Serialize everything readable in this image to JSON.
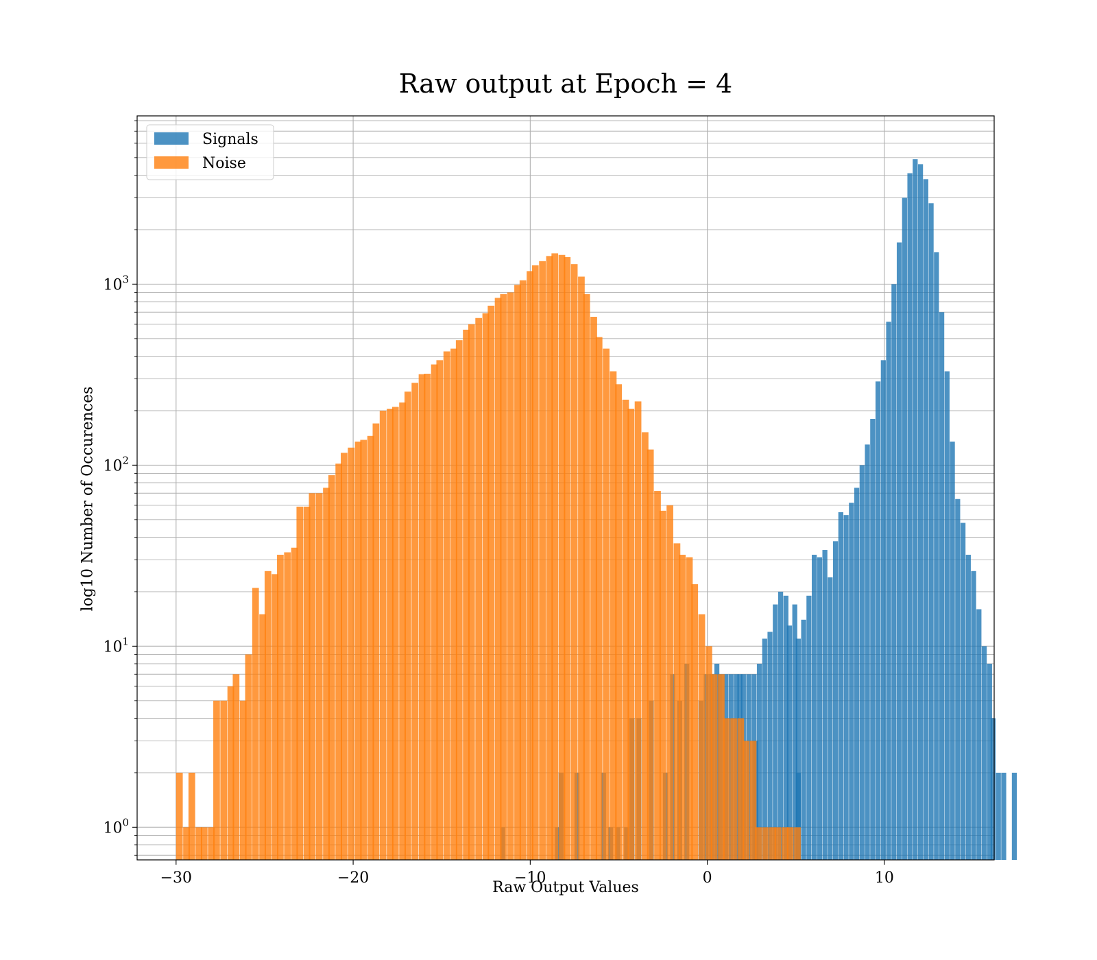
{
  "chart_data": {
    "type": "bar",
    "title": "Raw output at Epoch = 4",
    "xlabel": "Raw Output Values",
    "ylabel": "log10 Number of Occurences",
    "x_range": [
      -32.2,
      16.2
    ],
    "y_range": [
      0.66,
      8500
    ],
    "y_scale": "log",
    "x_ticks": [
      {
        "value": -30,
        "label": "−30"
      },
      {
        "value": -20,
        "label": "−20"
      },
      {
        "value": -10,
        "label": "−10"
      },
      {
        "value": 0,
        "label": "0"
      },
      {
        "value": 10,
        "label": "10"
      }
    ],
    "y_ticks": [
      {
        "value": 1,
        "base": "10",
        "exp": "0"
      },
      {
        "value": 10,
        "base": "10",
        "exp": "1"
      },
      {
        "value": 100,
        "base": "10",
        "exp": "2"
      },
      {
        "value": 1000,
        "base": "10",
        "exp": "3"
      }
    ],
    "grid": true,
    "legend_position": "top-left",
    "series": [
      {
        "name": "Signals",
        "color": "#1f77b4",
        "opacity": 0.8,
        "bin_width": 0.27,
        "bins": [
          [
            -11.7,
            1
          ],
          [
            -8.6,
            1
          ],
          [
            -8.4,
            2
          ],
          [
            -7.5,
            2
          ],
          [
            -6.0,
            2
          ],
          [
            -5.6,
            1
          ],
          [
            -5.2,
            1
          ],
          [
            -4.7,
            1
          ],
          [
            -4.4,
            4
          ],
          [
            -4.0,
            4
          ],
          [
            -3.3,
            5
          ],
          [
            -2.5,
            2
          ],
          [
            -2.1,
            7
          ],
          [
            -1.7,
            5
          ],
          [
            -1.3,
            8
          ],
          [
            -0.5,
            5
          ],
          [
            -0.2,
            7
          ],
          [
            0.1,
            7
          ],
          [
            0.4,
            8
          ],
          [
            0.6,
            7
          ],
          [
            0.9,
            7
          ],
          [
            1.2,
            7
          ],
          [
            1.5,
            7
          ],
          [
            1.7,
            7
          ],
          [
            1.9,
            7
          ],
          [
            2.2,
            7
          ],
          [
            2.5,
            7
          ],
          [
            2.8,
            8
          ],
          [
            3.1,
            11
          ],
          [
            3.4,
            12
          ],
          [
            3.7,
            17
          ],
          [
            4.0,
            20
          ],
          [
            4.3,
            19
          ],
          [
            4.5,
            13
          ],
          [
            4.8,
            17
          ],
          [
            5.0,
            11
          ],
          [
            5.3,
            14
          ],
          [
            5.6,
            19
          ],
          [
            5.9,
            32
          ],
          [
            6.2,
            31
          ],
          [
            6.5,
            34
          ],
          [
            6.8,
            24
          ],
          [
            7.1,
            38
          ],
          [
            7.4,
            55
          ],
          [
            7.7,
            53
          ],
          [
            8.0,
            62
          ],
          [
            8.3,
            75
          ],
          [
            8.6,
            100
          ],
          [
            8.9,
            130
          ],
          [
            9.2,
            180
          ],
          [
            9.5,
            290
          ],
          [
            9.8,
            380
          ],
          [
            10.1,
            620
          ],
          [
            10.4,
            1000
          ],
          [
            10.7,
            1700
          ],
          [
            11.0,
            3000
          ],
          [
            11.3,
            4100
          ],
          [
            11.6,
            4900
          ],
          [
            11.9,
            4600
          ],
          [
            12.2,
            3800
          ],
          [
            12.5,
            2800
          ],
          [
            12.8,
            1500
          ],
          [
            13.1,
            700
          ],
          [
            13.4,
            330
          ],
          [
            13.7,
            135
          ],
          [
            14.0,
            65
          ],
          [
            14.3,
            48
          ],
          [
            14.6,
            32
          ],
          [
            14.9,
            26
          ],
          [
            15.2,
            16
          ],
          [
            15.5,
            10
          ],
          [
            15.8,
            8
          ],
          [
            16.0,
            4
          ],
          [
            16.3,
            2
          ],
          [
            16.6,
            2
          ],
          [
            17.2,
            2
          ],
          [
            5.0,
            2
          ],
          [
            2.6,
            3
          ]
        ]
      },
      {
        "name": "Noise",
        "color": "#ff7f0e",
        "opacity": 0.8,
        "bin_width": 0.365,
        "bins": [
          [
            -30.0,
            2
          ],
          [
            -29.6,
            1
          ],
          [
            -29.3,
            2
          ],
          [
            -28.9,
            1
          ],
          [
            -28.6,
            1
          ],
          [
            -28.2,
            1
          ],
          [
            -27.9,
            5
          ],
          [
            -27.5,
            5
          ],
          [
            -27.1,
            6
          ],
          [
            -26.8,
            7
          ],
          [
            -26.4,
            5
          ],
          [
            -26.1,
            9
          ],
          [
            -25.7,
            21
          ],
          [
            -25.3,
            15
          ],
          [
            -25.0,
            26
          ],
          [
            -24.6,
            25
          ],
          [
            -24.3,
            32
          ],
          [
            -23.9,
            33
          ],
          [
            -23.5,
            35
          ],
          [
            -23.2,
            59
          ],
          [
            -22.8,
            59
          ],
          [
            -22.5,
            70
          ],
          [
            -22.1,
            70
          ],
          [
            -21.7,
            75
          ],
          [
            -21.4,
            88
          ],
          [
            -21.0,
            102
          ],
          [
            -20.7,
            117
          ],
          [
            -20.3,
            125
          ],
          [
            -19.9,
            135
          ],
          [
            -19.6,
            138
          ],
          [
            -19.2,
            145
          ],
          [
            -18.9,
            170
          ],
          [
            -18.5,
            200
          ],
          [
            -18.1,
            205
          ],
          [
            -17.8,
            210
          ],
          [
            -17.4,
            222
          ],
          [
            -17.1,
            255
          ],
          [
            -16.7,
            285
          ],
          [
            -16.3,
            318
          ],
          [
            -16.0,
            320
          ],
          [
            -15.6,
            360
          ],
          [
            -15.3,
            380
          ],
          [
            -14.9,
            425
          ],
          [
            -14.5,
            440
          ],
          [
            -14.2,
            490
          ],
          [
            -13.8,
            560
          ],
          [
            -13.5,
            600
          ],
          [
            -13.1,
            650
          ],
          [
            -12.7,
            690
          ],
          [
            -12.4,
            760
          ],
          [
            -12.0,
            840
          ],
          [
            -11.7,
            880
          ],
          [
            -11.3,
            900
          ],
          [
            -10.9,
            990
          ],
          [
            -10.6,
            1050
          ],
          [
            -10.2,
            1180
          ],
          [
            -9.9,
            1270
          ],
          [
            -9.5,
            1340
          ],
          [
            -9.1,
            1430
          ],
          [
            -8.8,
            1480
          ],
          [
            -8.4,
            1450
          ],
          [
            -8.1,
            1410
          ],
          [
            -7.7,
            1290
          ],
          [
            -7.3,
            1100
          ],
          [
            -7.0,
            880
          ],
          [
            -6.6,
            660
          ],
          [
            -6.3,
            510
          ],
          [
            -5.9,
            440
          ],
          [
            -5.5,
            330
          ],
          [
            -5.2,
            280
          ],
          [
            -4.8,
            230
          ],
          [
            -4.5,
            205
          ],
          [
            -4.1,
            225
          ],
          [
            -3.7,
            152
          ],
          [
            -3.4,
            122
          ],
          [
            -3.0,
            72
          ],
          [
            -2.7,
            56
          ],
          [
            -2.3,
            60
          ],
          [
            -1.9,
            37
          ],
          [
            -1.6,
            32
          ],
          [
            -1.2,
            31
          ],
          [
            -0.9,
            22
          ],
          [
            -0.5,
            15
          ],
          [
            -0.1,
            10
          ],
          [
            0.2,
            7
          ],
          [
            0.6,
            7
          ],
          [
            0.9,
            4
          ],
          [
            1.3,
            4
          ],
          [
            1.7,
            4
          ],
          [
            2.0,
            3
          ],
          [
            2.4,
            3
          ],
          [
            2.7,
            1
          ],
          [
            3.1,
            1
          ],
          [
            3.5,
            1
          ],
          [
            3.8,
            1
          ],
          [
            4.2,
            1
          ],
          [
            4.5,
            1
          ],
          [
            4.9,
            1
          ]
        ]
      }
    ]
  }
}
